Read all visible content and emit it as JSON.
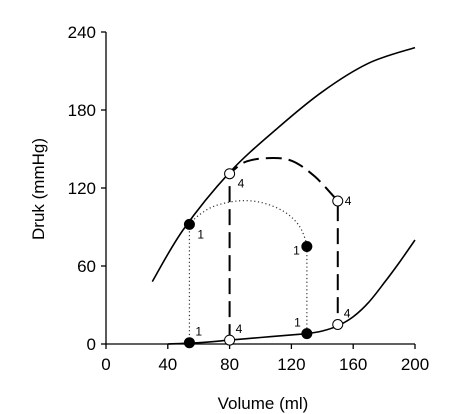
{
  "chart_data": {
    "type": "line",
    "title": "",
    "xlabel": "Volume (ml)",
    "ylabel": "Druk (mmHg)",
    "xlim": [
      0,
      200
    ],
    "ylim": [
      0,
      240
    ],
    "xticks": [
      0,
      40,
      80,
      120,
      160,
      200
    ],
    "yticks": [
      0,
      60,
      120,
      180,
      240
    ],
    "grid": false,
    "legend": "none",
    "series": [
      {
        "role": "end-systolic pressure-volume relation",
        "style": "solid",
        "x": [
          30,
          50,
          80,
          110,
          140,
          170,
          200
        ],
        "y": [
          48,
          88,
          132,
          165,
          194,
          216,
          228
        ]
      },
      {
        "role": "end-diastolic pressure-volume relation",
        "style": "solid",
        "x": [
          40,
          60,
          80,
          100,
          120,
          130,
          140,
          150,
          160,
          170,
          180,
          190,
          200
        ],
        "y": [
          0,
          1,
          3,
          5,
          7,
          8,
          10,
          14,
          21,
          32,
          47,
          63,
          80
        ]
      },
      {
        "role": "loop 4",
        "style": "dashed",
        "x": [
          80,
          80,
          90,
          105,
          120,
          135,
          150,
          150,
          140,
          120,
          100,
          80
        ],
        "y": [
          3,
          131,
          140,
          143,
          141,
          129,
          110,
          14,
          10,
          7,
          5,
          3
        ]
      },
      {
        "role": "loop 1",
        "style": "dotted",
        "x": [
          54,
          54,
          60,
          70,
          85,
          100,
          115,
          125,
          130,
          130
        ],
        "y": [
          1,
          92,
          99,
          106,
          110,
          109,
          102,
          91,
          77,
          8
        ]
      }
    ],
    "points": [
      {
        "x": 54,
        "y": 92,
        "filled": true,
        "label": "1",
        "label_pos": "below-right"
      },
      {
        "x": 130,
        "y": 75,
        "filled": true,
        "label": "1",
        "label_pos": "left"
      },
      {
        "x": 54,
        "y": 1,
        "filled": true,
        "label": "1",
        "label_pos": "above-right"
      },
      {
        "x": 130,
        "y": 8,
        "filled": true,
        "label": "1",
        "label_pos": "above-left"
      },
      {
        "x": 80,
        "y": 131,
        "filled": false,
        "label": "4",
        "label_pos": "below-right"
      },
      {
        "x": 150,
        "y": 110,
        "filled": false,
        "label": "4",
        "label_pos": "right"
      },
      {
        "x": 80,
        "y": 3,
        "filled": false,
        "label": "4",
        "label_pos": "above-right"
      },
      {
        "x": 150,
        "y": 15,
        "filled": false,
        "label": "4",
        "label_pos": "above-right"
      }
    ]
  }
}
